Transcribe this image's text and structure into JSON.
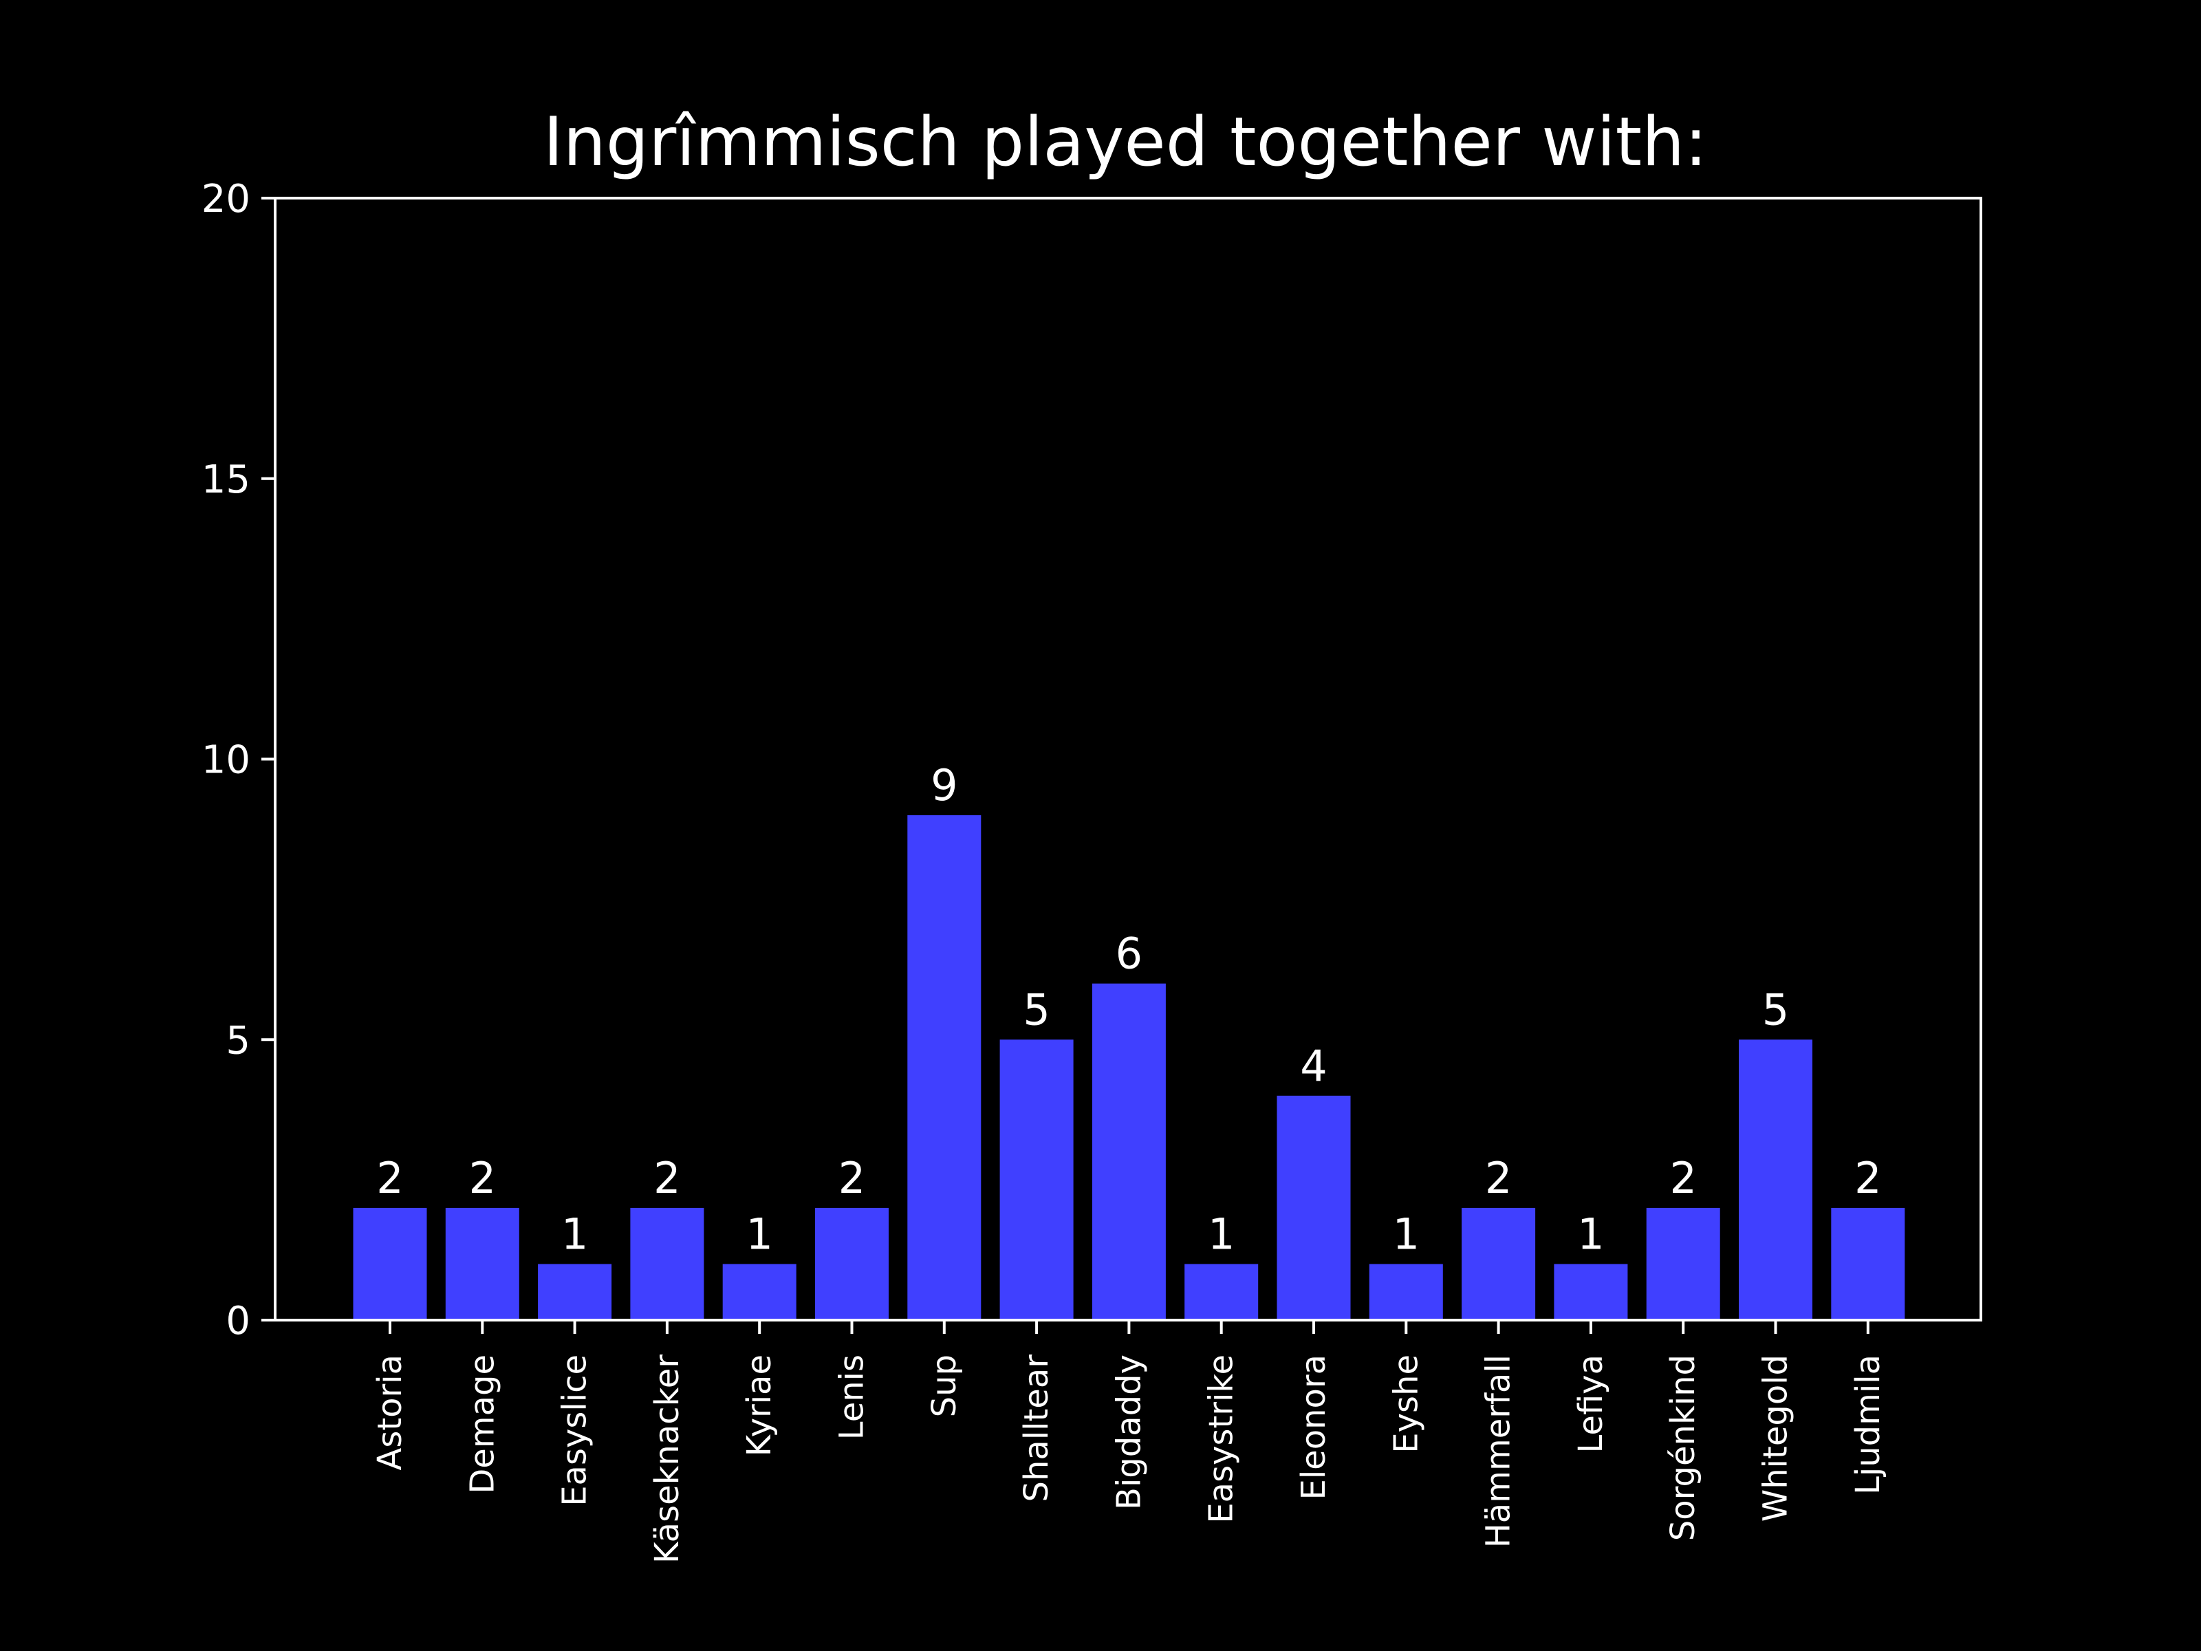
{
  "chart_data": {
    "type": "bar",
    "title": "Ingrîmmisch played together with:",
    "xlabel": "",
    "ylabel": "",
    "ylim": [
      0,
      20
    ],
    "yticks": [
      0,
      5,
      10,
      15,
      20
    ],
    "grid": false,
    "legend": "none",
    "bar_color": "#4040ff",
    "background_color": "#000000",
    "text_color": "#ffffff",
    "categories": [
      "Astoria",
      "Demage",
      "Easyslice",
      "Käseknacker",
      "Kyriae",
      "Lenis",
      "Sup",
      "Shalltear",
      "Bigdaddy",
      "Easystrike",
      "Eleonora",
      "Eyshe",
      "Hämmerfall",
      "Lefiya",
      "Sorgénkind",
      "Whitegold",
      "Ljudmila"
    ],
    "values": [
      2,
      2,
      1,
      2,
      1,
      2,
      9,
      5,
      6,
      1,
      4,
      1,
      2,
      1,
      2,
      5,
      2
    ],
    "value_labels": [
      "2",
      "2",
      "1",
      "2",
      "1",
      "2",
      "9",
      "5",
      "6",
      "1",
      "4",
      "1",
      "2",
      "1",
      "2",
      "5",
      "2"
    ]
  }
}
